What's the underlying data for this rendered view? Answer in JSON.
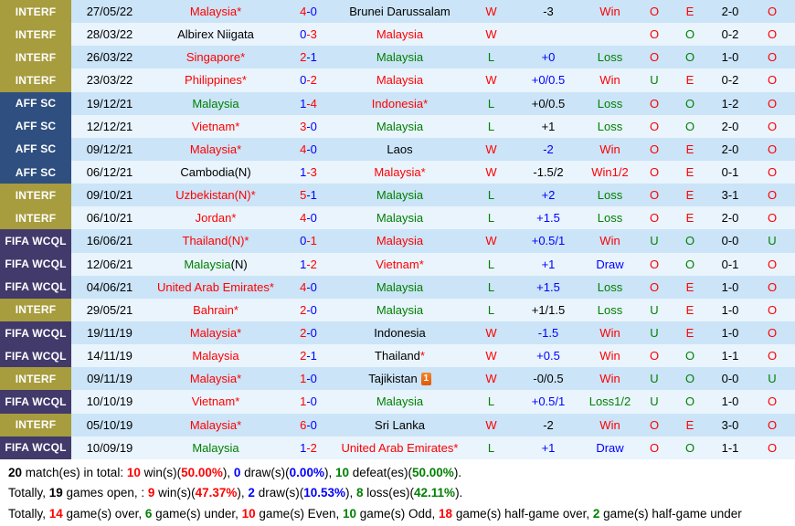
{
  "colors": {
    "accent_red": "#ff0000",
    "accent_green": "#008000",
    "accent_blue": "#0000ff",
    "badge_gold": "#a79c3e",
    "badge_navy": "#2f4f80",
    "badge_purple": "#413a6b",
    "row_light_blue": "#cbe4f7",
    "row_pale_blue": "#e9f4fd",
    "card_icon_orange": "#e25500"
  },
  "table": {
    "rows": [
      {
        "comp": "INTERF",
        "cc": "gold",
        "date": "27/05/22",
        "home": {
          "name": "Malaysia",
          "c": "red",
          "star": true
        },
        "sh": "4",
        "sa": "0",
        "shc": "red",
        "sac": "blue",
        "away": {
          "name": "Brunei Darussalam",
          "c": "black"
        },
        "wl": {
          "t": "W",
          "c": "red"
        },
        "hcp": {
          "t": "-3",
          "c": "black"
        },
        "res": {
          "t": "Win",
          "c": "red"
        },
        "ou1": {
          "t": "O",
          "c": "red"
        },
        "eo": {
          "t": "E",
          "c": "red"
        },
        "ht": "2-0",
        "ou2": {
          "t": "O",
          "c": "red"
        }
      },
      {
        "comp": "INTERF",
        "cc": "gold",
        "date": "28/03/22",
        "home": {
          "name": "Albirex Niigata",
          "c": "black"
        },
        "sh": "0",
        "sa": "3",
        "shc": "blue",
        "sac": "red",
        "away": {
          "name": "Malaysia",
          "c": "red"
        },
        "wl": {
          "t": "W",
          "c": "red"
        },
        "hcp": {
          "t": "",
          "c": "black"
        },
        "res": {
          "t": "",
          "c": "black"
        },
        "ou1": {
          "t": "O",
          "c": "red"
        },
        "eo": {
          "t": "O",
          "c": "green"
        },
        "ht": "0-2",
        "ou2": {
          "t": "O",
          "c": "red"
        }
      },
      {
        "comp": "INTERF",
        "cc": "gold",
        "date": "26/03/22",
        "home": {
          "name": "Singapore",
          "c": "red",
          "star": true
        },
        "sh": "2",
        "sa": "1",
        "shc": "red",
        "sac": "blue",
        "away": {
          "name": "Malaysia",
          "c": "green"
        },
        "wl": {
          "t": "L",
          "c": "green"
        },
        "hcp": {
          "t": "+0",
          "c": "blue"
        },
        "res": {
          "t": "Loss",
          "c": "green"
        },
        "ou1": {
          "t": "O",
          "c": "red"
        },
        "eo": {
          "t": "O",
          "c": "green"
        },
        "ht": "1-0",
        "ou2": {
          "t": "O",
          "c": "red"
        }
      },
      {
        "comp": "INTERF",
        "cc": "gold",
        "date": "23/03/22",
        "home": {
          "name": "Philippines",
          "c": "red",
          "star": true
        },
        "sh": "0",
        "sa": "2",
        "shc": "blue",
        "sac": "red",
        "away": {
          "name": "Malaysia",
          "c": "red"
        },
        "wl": {
          "t": "W",
          "c": "red"
        },
        "hcp": {
          "t": "+0/0.5",
          "c": "blue"
        },
        "res": {
          "t": "Win",
          "c": "red"
        },
        "ou1": {
          "t": "U",
          "c": "green"
        },
        "eo": {
          "t": "E",
          "c": "red"
        },
        "ht": "0-2",
        "ou2": {
          "t": "O",
          "c": "red"
        }
      },
      {
        "comp": "AFF SC",
        "cc": "navy",
        "date": "19/12/21",
        "home": {
          "name": "Malaysia",
          "c": "green"
        },
        "sh": "1",
        "sa": "4",
        "shc": "blue",
        "sac": "red",
        "away": {
          "name": "Indonesia",
          "c": "red",
          "star": true
        },
        "wl": {
          "t": "L",
          "c": "green"
        },
        "hcp": {
          "t": "+0/0.5",
          "c": "black"
        },
        "res": {
          "t": "Loss",
          "c": "green"
        },
        "ou1": {
          "t": "O",
          "c": "red"
        },
        "eo": {
          "t": "O",
          "c": "green"
        },
        "ht": "1-2",
        "ou2": {
          "t": "O",
          "c": "red"
        }
      },
      {
        "comp": "AFF SC",
        "cc": "navy",
        "date": "12/12/21",
        "home": {
          "name": "Vietnam",
          "c": "red",
          "star": true
        },
        "sh": "3",
        "sa": "0",
        "shc": "red",
        "sac": "blue",
        "away": {
          "name": "Malaysia",
          "c": "green"
        },
        "wl": {
          "t": "L",
          "c": "green"
        },
        "hcp": {
          "t": "+1",
          "c": "black"
        },
        "res": {
          "t": "Loss",
          "c": "green"
        },
        "ou1": {
          "t": "O",
          "c": "red"
        },
        "eo": {
          "t": "O",
          "c": "green"
        },
        "ht": "2-0",
        "ou2": {
          "t": "O",
          "c": "red"
        }
      },
      {
        "comp": "AFF SC",
        "cc": "navy",
        "date": "09/12/21",
        "home": {
          "name": "Malaysia",
          "c": "red",
          "star": true
        },
        "sh": "4",
        "sa": "0",
        "shc": "red",
        "sac": "blue",
        "away": {
          "name": "Laos",
          "c": "black"
        },
        "wl": {
          "t": "W",
          "c": "red"
        },
        "hcp": {
          "t": "-2",
          "c": "blue"
        },
        "res": {
          "t": "Win",
          "c": "red"
        },
        "ou1": {
          "t": "O",
          "c": "red"
        },
        "eo": {
          "t": "E",
          "c": "red"
        },
        "ht": "2-0",
        "ou2": {
          "t": "O",
          "c": "red"
        }
      },
      {
        "comp": "AFF SC",
        "cc": "navy",
        "date": "06/12/21",
        "home": {
          "name": "Cambodia(N)",
          "c": "black"
        },
        "sh": "1",
        "sa": "3",
        "shc": "blue",
        "sac": "red",
        "away": {
          "name": "Malaysia",
          "c": "red",
          "star": true
        },
        "wl": {
          "t": "W",
          "c": "red"
        },
        "hcp": {
          "t": "-1.5/2",
          "c": "black"
        },
        "res": {
          "t": "Win1/2",
          "c": "red"
        },
        "ou1": {
          "t": "O",
          "c": "red"
        },
        "eo": {
          "t": "E",
          "c": "red"
        },
        "ht": "0-1",
        "ou2": {
          "t": "O",
          "c": "red"
        }
      },
      {
        "comp": "INTERF",
        "cc": "gold",
        "date": "09/10/21",
        "home": {
          "name": "Uzbekistan(N)",
          "c": "red",
          "star": true
        },
        "sh": "5",
        "sa": "1",
        "shc": "red",
        "sac": "blue",
        "away": {
          "name": "Malaysia",
          "c": "green"
        },
        "wl": {
          "t": "L",
          "c": "green"
        },
        "hcp": {
          "t": "+2",
          "c": "blue"
        },
        "res": {
          "t": "Loss",
          "c": "green"
        },
        "ou1": {
          "t": "O",
          "c": "red"
        },
        "eo": {
          "t": "E",
          "c": "red"
        },
        "ht": "3-1",
        "ou2": {
          "t": "O",
          "c": "red"
        }
      },
      {
        "comp": "INTERF",
        "cc": "gold",
        "date": "06/10/21",
        "home": {
          "name": "Jordan",
          "c": "red",
          "star": true
        },
        "sh": "4",
        "sa": "0",
        "shc": "red",
        "sac": "blue",
        "away": {
          "name": "Malaysia",
          "c": "green"
        },
        "wl": {
          "t": "L",
          "c": "green"
        },
        "hcp": {
          "t": "+1.5",
          "c": "blue"
        },
        "res": {
          "t": "Loss",
          "c": "green"
        },
        "ou1": {
          "t": "O",
          "c": "red"
        },
        "eo": {
          "t": "E",
          "c": "red"
        },
        "ht": "2-0",
        "ou2": {
          "t": "O",
          "c": "red"
        }
      },
      {
        "comp": "FIFA WCQL",
        "cc": "purple",
        "date": "16/06/21",
        "home": {
          "name": "Thailand(N)",
          "c": "red",
          "star": true
        },
        "sh": "0",
        "sa": "1",
        "shc": "blue",
        "sac": "red",
        "away": {
          "name": "Malaysia",
          "c": "red"
        },
        "wl": {
          "t": "W",
          "c": "red"
        },
        "hcp": {
          "t": "+0.5/1",
          "c": "blue"
        },
        "res": {
          "t": "Win",
          "c": "red"
        },
        "ou1": {
          "t": "U",
          "c": "green"
        },
        "eo": {
          "t": "O",
          "c": "green"
        },
        "ht": "0-0",
        "ou2": {
          "t": "U",
          "c": "green"
        }
      },
      {
        "comp": "FIFA WCQL",
        "cc": "purple",
        "date": "12/06/21",
        "home": {
          "name": "Malaysia",
          "c": "green",
          "suffix": "(N)"
        },
        "sh": "1",
        "sa": "2",
        "shc": "blue",
        "sac": "red",
        "away": {
          "name": "Vietnam",
          "c": "red",
          "star": true
        },
        "wl": {
          "t": "L",
          "c": "green"
        },
        "hcp": {
          "t": "+1",
          "c": "blue"
        },
        "res": {
          "t": "Draw",
          "c": "blue"
        },
        "ou1": {
          "t": "O",
          "c": "red"
        },
        "eo": {
          "t": "O",
          "c": "green"
        },
        "ht": "0-1",
        "ou2": {
          "t": "O",
          "c": "red"
        }
      },
      {
        "comp": "FIFA WCQL",
        "cc": "purple",
        "date": "04/06/21",
        "home": {
          "name": "United Arab Emirates",
          "c": "red",
          "star": true
        },
        "sh": "4",
        "sa": "0",
        "shc": "red",
        "sac": "blue",
        "away": {
          "name": "Malaysia",
          "c": "green"
        },
        "wl": {
          "t": "L",
          "c": "green"
        },
        "hcp": {
          "t": "+1.5",
          "c": "blue"
        },
        "res": {
          "t": "Loss",
          "c": "green"
        },
        "ou1": {
          "t": "O",
          "c": "red"
        },
        "eo": {
          "t": "E",
          "c": "red"
        },
        "ht": "1-0",
        "ou2": {
          "t": "O",
          "c": "red"
        }
      },
      {
        "comp": "INTERF",
        "cc": "gold",
        "date": "29/05/21",
        "home": {
          "name": "Bahrain",
          "c": "red",
          "star": true
        },
        "sh": "2",
        "sa": "0",
        "shc": "red",
        "sac": "blue",
        "away": {
          "name": "Malaysia",
          "c": "green"
        },
        "wl": {
          "t": "L",
          "c": "green"
        },
        "hcp": {
          "t": "+1/1.5",
          "c": "black"
        },
        "res": {
          "t": "Loss",
          "c": "green"
        },
        "ou1": {
          "t": "U",
          "c": "green"
        },
        "eo": {
          "t": "E",
          "c": "red"
        },
        "ht": "1-0",
        "ou2": {
          "t": "O",
          "c": "red"
        }
      },
      {
        "comp": "FIFA WCQL",
        "cc": "purple",
        "date": "19/11/19",
        "home": {
          "name": "Malaysia",
          "c": "red",
          "star": true
        },
        "sh": "2",
        "sa": "0",
        "shc": "red",
        "sac": "blue",
        "away": {
          "name": "Indonesia",
          "c": "black"
        },
        "wl": {
          "t": "W",
          "c": "red"
        },
        "hcp": {
          "t": "-1.5",
          "c": "blue"
        },
        "res": {
          "t": "Win",
          "c": "red"
        },
        "ou1": {
          "t": "U",
          "c": "green"
        },
        "eo": {
          "t": "E",
          "c": "red"
        },
        "ht": "1-0",
        "ou2": {
          "t": "O",
          "c": "red"
        }
      },
      {
        "comp": "FIFA WCQL",
        "cc": "purple",
        "date": "14/11/19",
        "home": {
          "name": "Malaysia",
          "c": "red"
        },
        "sh": "2",
        "sa": "1",
        "shc": "red",
        "sac": "blue",
        "away": {
          "name": "Thailand",
          "c": "black",
          "star": true
        },
        "wl": {
          "t": "W",
          "c": "red"
        },
        "hcp": {
          "t": "+0.5",
          "c": "blue"
        },
        "res": {
          "t": "Win",
          "c": "red"
        },
        "ou1": {
          "t": "O",
          "c": "red"
        },
        "eo": {
          "t": "O",
          "c": "green"
        },
        "ht": "1-1",
        "ou2": {
          "t": "O",
          "c": "red"
        }
      },
      {
        "comp": "INTERF",
        "cc": "gold",
        "date": "09/11/19",
        "home": {
          "name": "Malaysia",
          "c": "red",
          "star": true
        },
        "sh": "1",
        "sa": "0",
        "shc": "red",
        "sac": "blue",
        "away": {
          "name": "Tajikistan",
          "c": "black",
          "badge": "1"
        },
        "wl": {
          "t": "W",
          "c": "red"
        },
        "hcp": {
          "t": "-0/0.5",
          "c": "black"
        },
        "res": {
          "t": "Win",
          "c": "red"
        },
        "ou1": {
          "t": "U",
          "c": "green"
        },
        "eo": {
          "t": "O",
          "c": "green"
        },
        "ht": "0-0",
        "ou2": {
          "t": "U",
          "c": "green"
        }
      },
      {
        "comp": "FIFA WCQL",
        "cc": "purple",
        "date": "10/10/19",
        "home": {
          "name": "Vietnam",
          "c": "red",
          "star": true
        },
        "sh": "1",
        "sa": "0",
        "shc": "red",
        "sac": "blue",
        "away": {
          "name": "Malaysia",
          "c": "green"
        },
        "wl": {
          "t": "L",
          "c": "green"
        },
        "hcp": {
          "t": "+0.5/1",
          "c": "blue"
        },
        "res": {
          "t": "Loss1/2",
          "c": "green"
        },
        "ou1": {
          "t": "U",
          "c": "green"
        },
        "eo": {
          "t": "O",
          "c": "green"
        },
        "ht": "1-0",
        "ou2": {
          "t": "O",
          "c": "red"
        }
      },
      {
        "comp": "INTERF",
        "cc": "gold",
        "date": "05/10/19",
        "home": {
          "name": "Malaysia",
          "c": "red",
          "star": true
        },
        "sh": "6",
        "sa": "0",
        "shc": "red",
        "sac": "blue",
        "away": {
          "name": "Sri Lanka",
          "c": "black"
        },
        "wl": {
          "t": "W",
          "c": "red"
        },
        "hcp": {
          "t": "-2",
          "c": "black"
        },
        "res": {
          "t": "Win",
          "c": "red"
        },
        "ou1": {
          "t": "O",
          "c": "red"
        },
        "eo": {
          "t": "E",
          "c": "red"
        },
        "ht": "3-0",
        "ou2": {
          "t": "O",
          "c": "red"
        }
      },
      {
        "comp": "FIFA WCQL",
        "cc": "purple",
        "date": "10/09/19",
        "home": {
          "name": "Malaysia",
          "c": "green"
        },
        "sh": "1",
        "sa": "2",
        "shc": "blue",
        "sac": "red",
        "away": {
          "name": "United Arab Emirates",
          "c": "red",
          "star": true
        },
        "wl": {
          "t": "L",
          "c": "green"
        },
        "hcp": {
          "t": "+1",
          "c": "blue"
        },
        "res": {
          "t": "Draw",
          "c": "blue"
        },
        "ou1": {
          "t": "O",
          "c": "red"
        },
        "eo": {
          "t": "O",
          "c": "green"
        },
        "ht": "1-1",
        "ou2": {
          "t": "O",
          "c": "red"
        }
      }
    ]
  },
  "summary": {
    "lines": [
      [
        {
          "t": "20",
          "b": true
        },
        {
          "t": " match(es) in total: "
        },
        {
          "t": "10",
          "b": true,
          "c": "red"
        },
        {
          "t": " win(s)("
        },
        {
          "t": "50.00%",
          "b": true,
          "c": "red"
        },
        {
          "t": "), "
        },
        {
          "t": "0",
          "b": true,
          "c": "blue"
        },
        {
          "t": " draw(s)("
        },
        {
          "t": "0.00%",
          "b": true,
          "c": "blue"
        },
        {
          "t": "), "
        },
        {
          "t": "10",
          "b": true,
          "c": "green"
        },
        {
          "t": " defeat(es)("
        },
        {
          "t": "50.00%",
          "b": true,
          "c": "green"
        },
        {
          "t": ")."
        }
      ],
      [
        {
          "t": "Totally, "
        },
        {
          "t": "19",
          "b": true
        },
        {
          "t": " games open, : "
        },
        {
          "t": "9",
          "b": true,
          "c": "red"
        },
        {
          "t": " win(s)("
        },
        {
          "t": "47.37%",
          "b": true,
          "c": "red"
        },
        {
          "t": "), "
        },
        {
          "t": "2",
          "b": true,
          "c": "blue"
        },
        {
          "t": " draw(s)("
        },
        {
          "t": "10.53%",
          "b": true,
          "c": "blue"
        },
        {
          "t": "), "
        },
        {
          "t": "8",
          "b": true,
          "c": "green"
        },
        {
          "t": " loss(es)("
        },
        {
          "t": "42.11%",
          "b": true,
          "c": "green"
        },
        {
          "t": ")."
        }
      ],
      [
        {
          "t": "Totally, "
        },
        {
          "t": "14",
          "b": true,
          "c": "red"
        },
        {
          "t": " game(s) over, "
        },
        {
          "t": "6",
          "b": true,
          "c": "green"
        },
        {
          "t": " game(s) under, "
        },
        {
          "t": "10",
          "b": true,
          "c": "red"
        },
        {
          "t": " game(s) Even, "
        },
        {
          "t": "10",
          "b": true,
          "c": "green"
        },
        {
          "t": " game(s) Odd, "
        },
        {
          "t": "18",
          "b": true,
          "c": "red"
        },
        {
          "t": " game(s) half-game over, "
        },
        {
          "t": "2",
          "b": true,
          "c": "green"
        },
        {
          "t": " game(s) half-game under"
        }
      ]
    ]
  }
}
